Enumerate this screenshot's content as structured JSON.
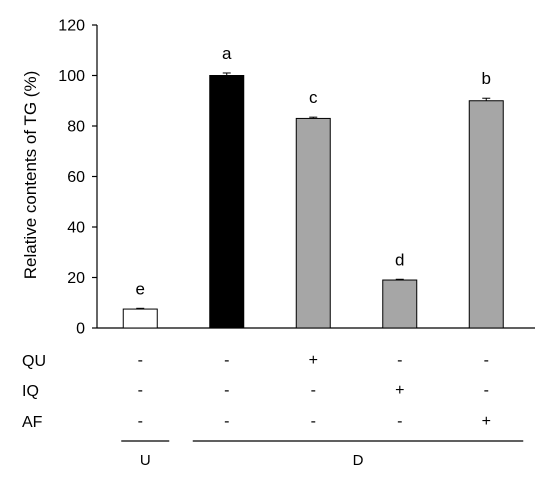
{
  "chart_data": {
    "type": "bar",
    "ylabel": "Relative contents of TG (%)",
    "ylim": [
      0,
      120
    ],
    "yticks": [
      0,
      20,
      40,
      60,
      80,
      100,
      120
    ],
    "grid": false,
    "legend": "none",
    "bars": [
      {
        "value": 7.5,
        "error": 0.3,
        "letter": "e",
        "color": "#ffffff"
      },
      {
        "value": 100,
        "error": 1.0,
        "letter": "a",
        "color": "#000000"
      },
      {
        "value": 83,
        "error": 0.5,
        "letter": "c",
        "color": "#a6a6a6"
      },
      {
        "value": 19,
        "error": 0.3,
        "letter": "d",
        "color": "#a6a6a6"
      },
      {
        "value": 90,
        "error": 1.0,
        "letter": "b",
        "color": "#a6a6a6"
      }
    ],
    "treatment_rows": [
      {
        "label": "QU",
        "signs": [
          "-",
          "-",
          "+",
          "-",
          "-"
        ]
      },
      {
        "label": "IQ",
        "signs": [
          "-",
          "-",
          "-",
          "+",
          "-"
        ]
      },
      {
        "label": "AF",
        "signs": [
          "-",
          "-",
          "-",
          "-",
          "+"
        ]
      }
    ],
    "groups": [
      {
        "label": "U",
        "from": 0,
        "to": 0
      },
      {
        "label": "D",
        "from": 1,
        "to": 4
      }
    ]
  }
}
